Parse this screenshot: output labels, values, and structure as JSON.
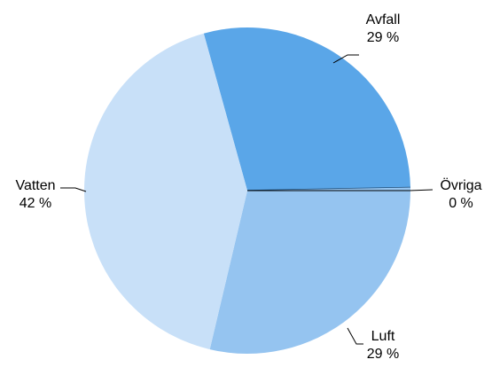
{
  "chart_data": {
    "type": "pie",
    "title": "",
    "slices": [
      {
        "name": "Avfall",
        "value": 29,
        "label": "29 %",
        "color": "#5aa6e8"
      },
      {
        "name": "Övriga",
        "value": 0,
        "label": "0 %",
        "color": "#1f4e79"
      },
      {
        "name": "Luft",
        "value": 29,
        "label": "29 %",
        "color": "#95c4f0"
      },
      {
        "name": "Vatten",
        "value": 42,
        "label": "42 %",
        "color": "#c8e0f8"
      }
    ],
    "start_angle_deg": -15.5,
    "direction": "clockwise",
    "legend": "none",
    "label_placement": "outside-with-leaders"
  }
}
